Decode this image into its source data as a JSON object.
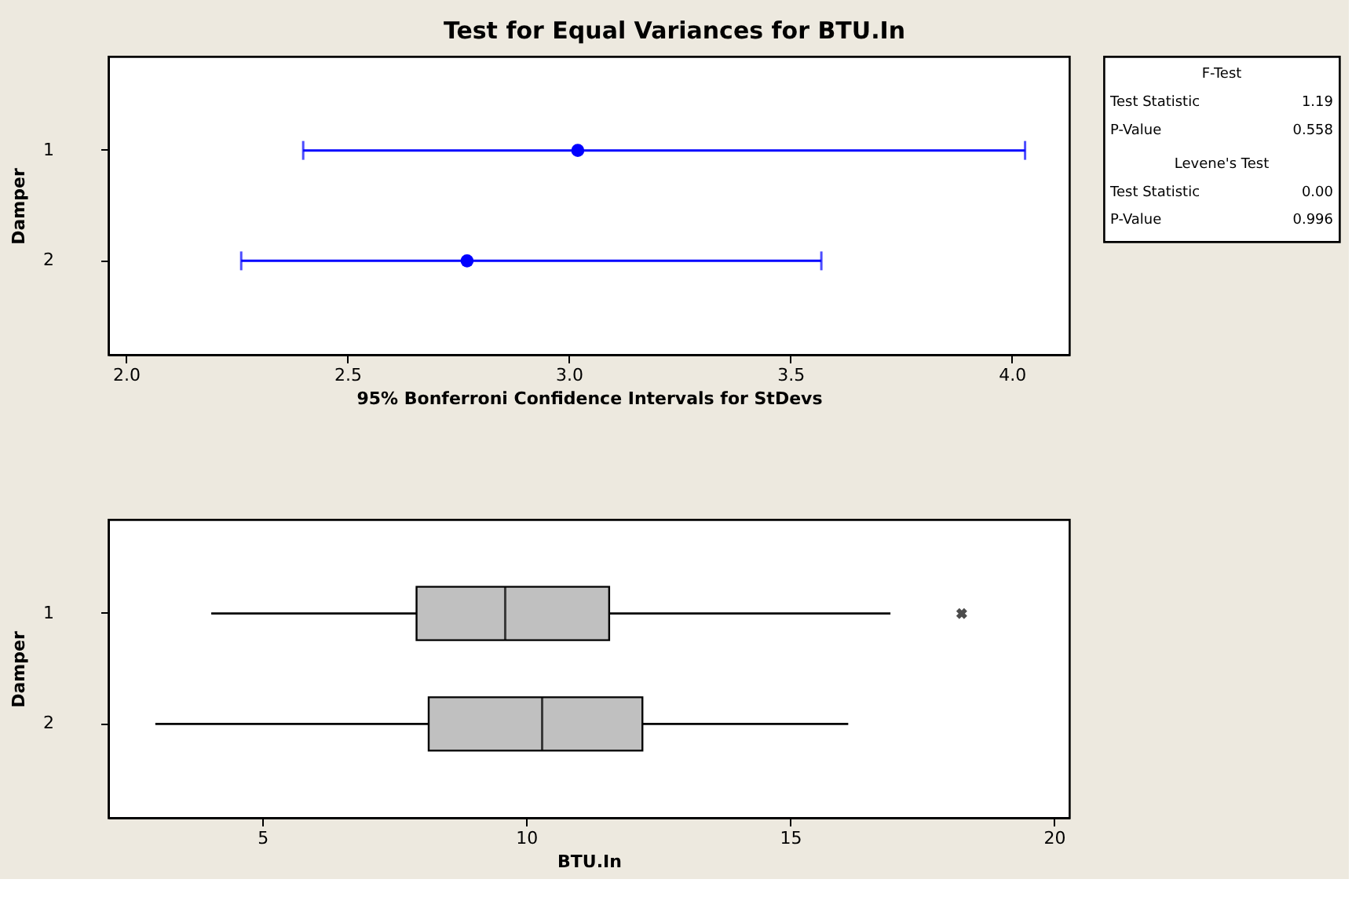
{
  "chart_data": [
    {
      "type": "scatter",
      "title": "Test for Equal Variances for BTU.In",
      "orientation": "horizontal",
      "marker": "circle",
      "categories": [
        "1",
        "2"
      ],
      "values": [
        3.02,
        2.77
      ],
      "errors": [
        [
          2.4,
          4.03
        ],
        [
          2.26,
          3.57
        ]
      ],
      "color": "#0000ff",
      "xlim": [
        1.96,
        4.13
      ],
      "xticks": [
        {
          "value": 2,
          "label": "2.0"
        },
        2.5,
        {
          "value": 3,
          "label": "3.0"
        },
        3.5,
        {
          "value": 4,
          "label": "4.0"
        }
      ],
      "xlabel": "95% Bonferroni Confidence Intervals for StDevs",
      "ylabel": "Damper",
      "grid": false
    },
    {
      "type": "box",
      "orientation": "horizontal",
      "categories": [
        "1",
        "2"
      ],
      "boxes": [
        {
          "low": 4.03,
          "q1": 7.92,
          "median": 9.6,
          "q3": 11.57,
          "high": 16.9,
          "outliers": [
            18.25
          ]
        },
        {
          "low": 2.97,
          "q1": 8.15,
          "median": 10.3,
          "q3": 12.2,
          "high": 16.1
        }
      ],
      "color": "#c0c0c0",
      "xlim": [
        2.08,
        20.29
      ],
      "xticks": [
        5,
        10,
        15,
        20
      ],
      "xlabel": "BTU.In",
      "ylabel": "Damper",
      "grid": false
    },
    {
      "type": "other",
      "annotations": [
        "F-Test",
        "Test Statistic",
        "1.19",
        "P-Value",
        "0.558",
        "Levene's Test",
        "Test Statistic",
        "0.00",
        "P-Value",
        "0.996"
      ]
    }
  ]
}
